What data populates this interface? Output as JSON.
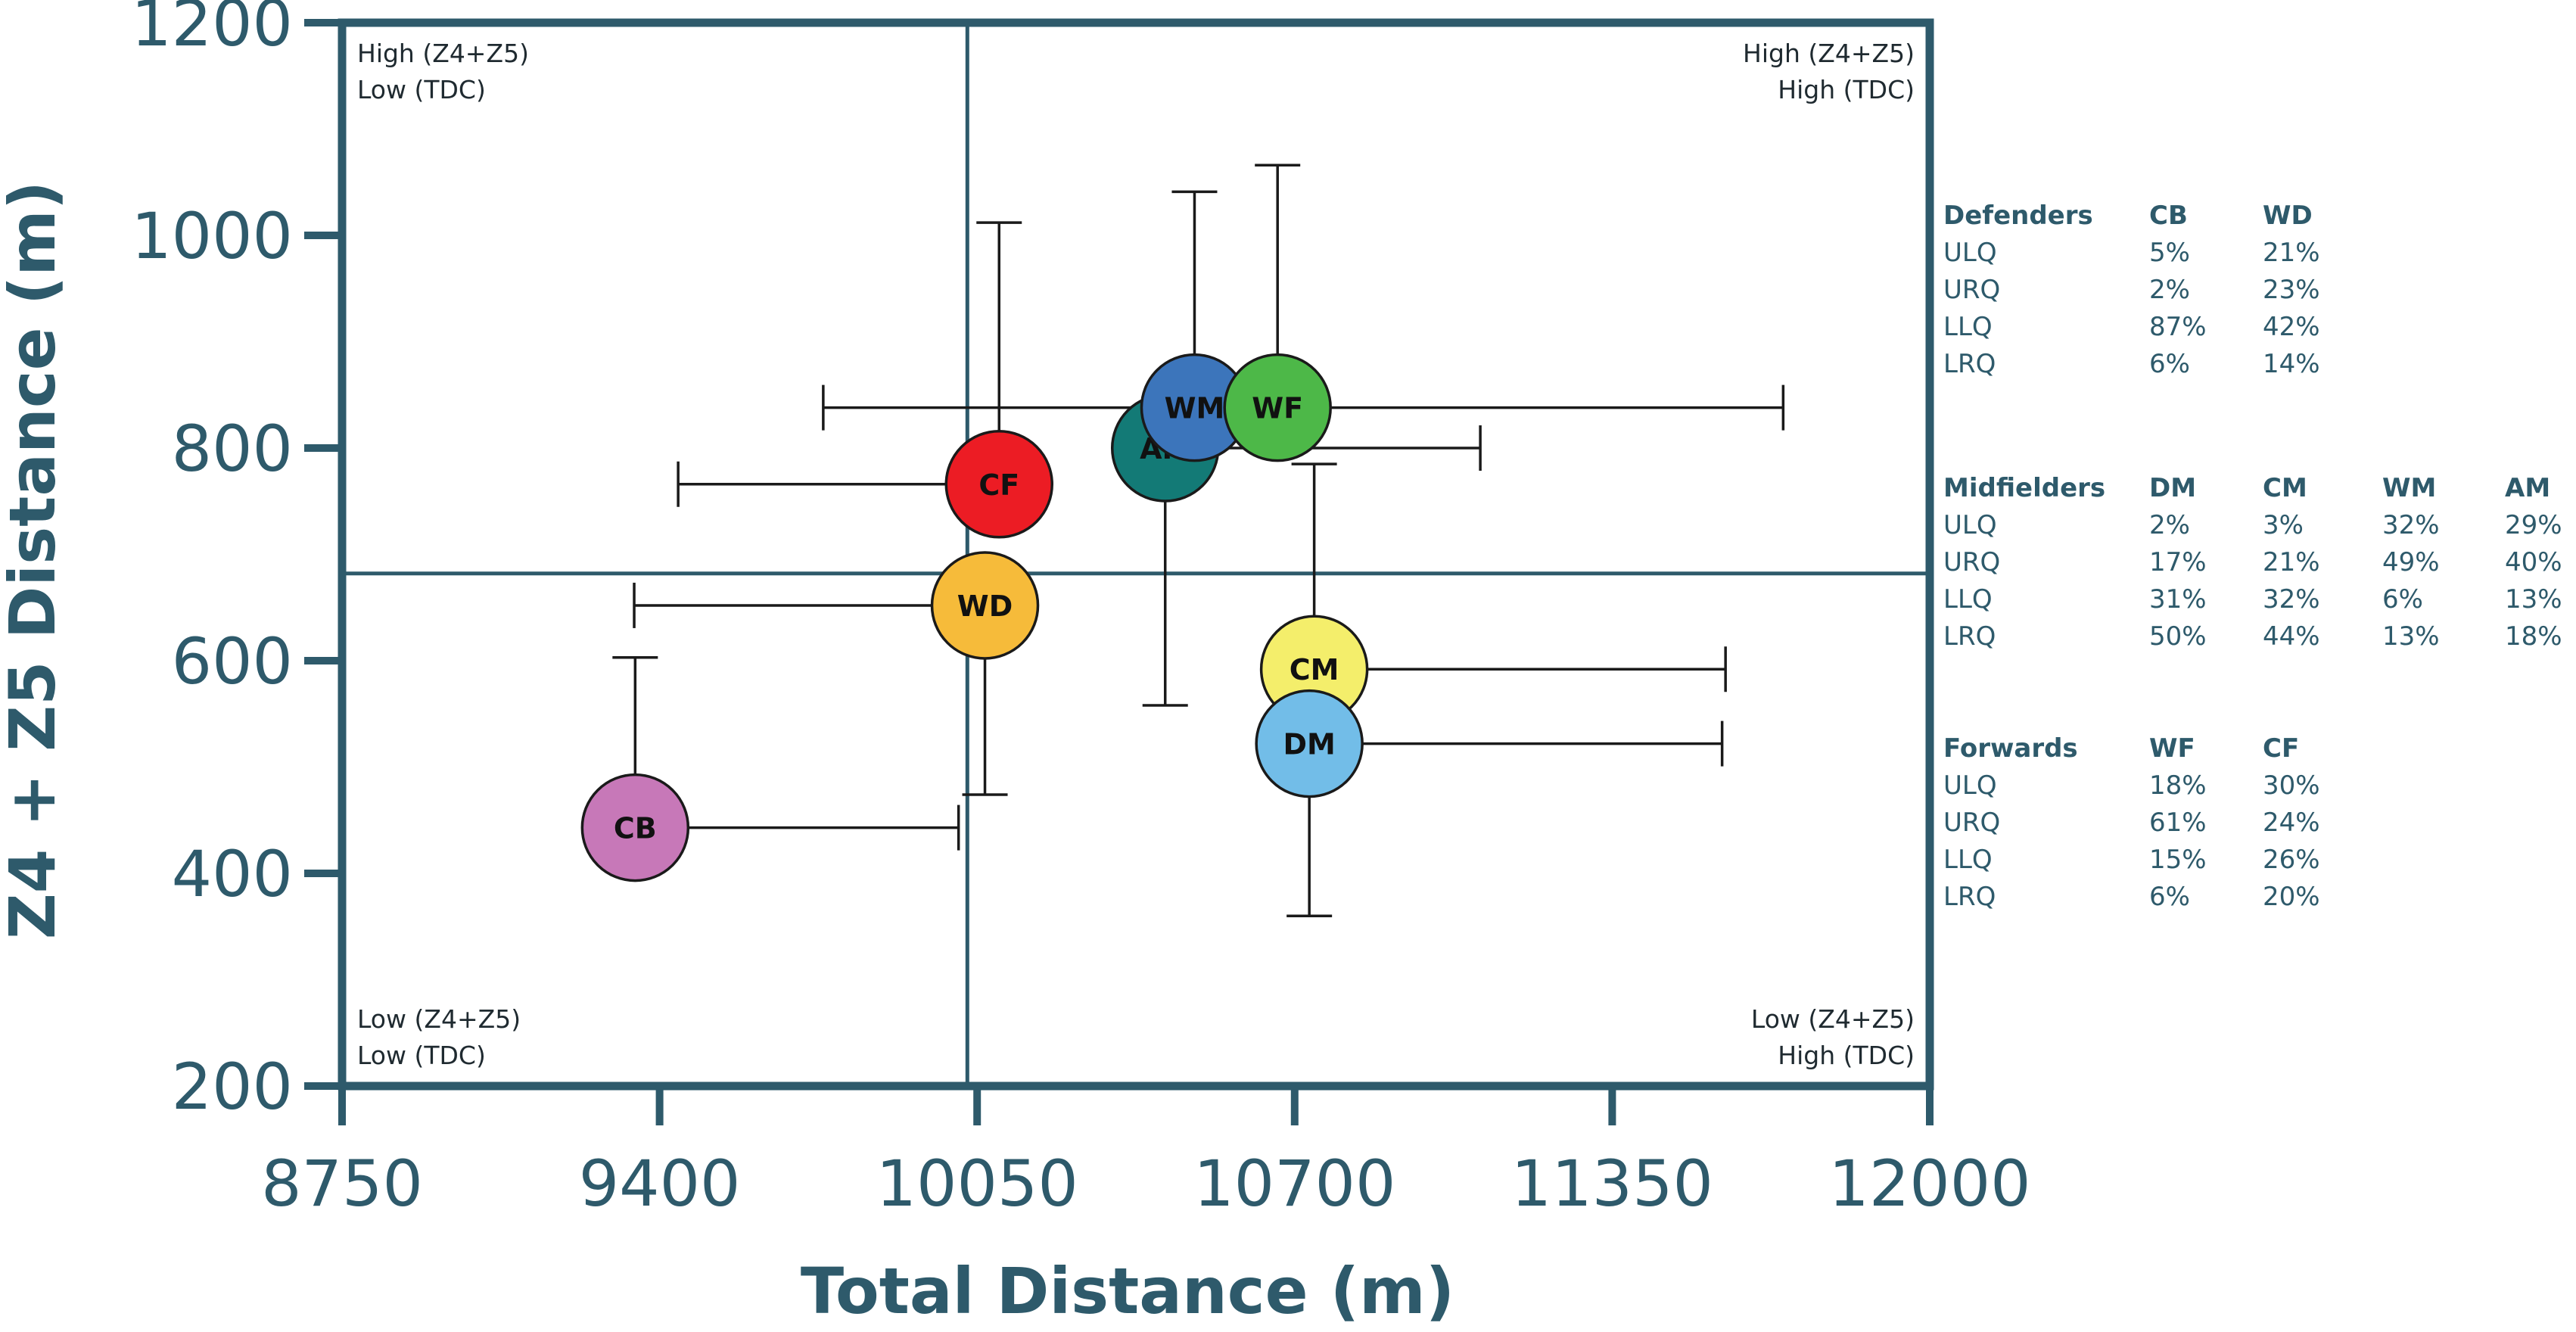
{
  "chart_data": {
    "type": "scatter",
    "xlabel": "Total Distance (m)",
    "ylabel": "Z4 + Z5 Distance (m)",
    "xlim": [
      8750,
      12000
    ],
    "ylim": [
      200,
      1200
    ],
    "xticks": [
      "8750",
      "9400",
      "10050",
      "10700",
      "11350",
      "12000"
    ],
    "yticks": [
      "200",
      "400",
      "600",
      "800",
      "1000",
      "1200"
    ],
    "grid": false,
    "quadrant_divider": {
      "x": 10030,
      "y": 682
    },
    "quadrant_labels": {
      "upper_left": [
        "High (Z4+Z5)",
        "Low (TDC)"
      ],
      "upper_right": [
        "High (Z4+Z5)",
        "High (TDC)"
      ],
      "lower_left": [
        "Low (Z4+Z5)",
        "Low (TDC)"
      ],
      "lower_right": [
        "Low (Z4+Z5)",
        "High (TDC)"
      ]
    },
    "points": [
      {
        "label": "CB",
        "x": 9350,
        "y": 443,
        "x_err_to": 10012,
        "y_err_to": 603,
        "color": "#c778b8"
      },
      {
        "label": "WD",
        "x": 10066,
        "y": 652,
        "x_err_to": 9348,
        "y_err_to": 474,
        "color": "#f6bb3a"
      },
      {
        "label": "CF",
        "x": 10095,
        "y": 766,
        "x_err_to": 9438,
        "y_err_to": 1012,
        "color": "#ec1c24"
      },
      {
        "label": "AM",
        "x": 10435,
        "y": 800,
        "x_err_to": 11080,
        "y_err_to": 558,
        "color": "#137a76"
      },
      {
        "label": "WM",
        "x": 10495,
        "y": 838,
        "x_err_to": 9735,
        "y_err_to": 1041,
        "color": "#3c75bb"
      },
      {
        "label": "WF",
        "x": 10665,
        "y": 838,
        "x_err_to": 11700,
        "y_err_to": 1066,
        "color": "#4db848"
      },
      {
        "label": "CM",
        "x": 10740,
        "y": 592,
        "x_err_to": 11582,
        "y_err_to": 785,
        "color": "#f4ee6b"
      },
      {
        "label": "DM",
        "x": 10730,
        "y": 522,
        "x_err_to": 11575,
        "y_err_to": 360,
        "color": "#72bde8"
      }
    ]
  },
  "tables": [
    {
      "header": [
        "Defenders",
        "CB",
        "WD"
      ],
      "rows": [
        [
          "ULQ",
          "5%",
          "21%"
        ],
        [
          "URQ",
          "2%",
          "23%"
        ],
        [
          "LLQ",
          "87%",
          "42%"
        ],
        [
          "LRQ",
          "6%",
          "14%"
        ]
      ]
    },
    {
      "header": [
        "Midfielders",
        "DM",
        "CM",
        "WM",
        "AM"
      ],
      "rows": [
        [
          "ULQ",
          "2%",
          "3%",
          "32%",
          "29%"
        ],
        [
          "URQ",
          "17%",
          "21%",
          "49%",
          "40%"
        ],
        [
          "LLQ",
          "31%",
          "32%",
          "6%",
          "13%"
        ],
        [
          "LRQ",
          "50%",
          "44%",
          "13%",
          "18%"
        ]
      ]
    },
    {
      "header": [
        "Forwards",
        "WF",
        "CF"
      ],
      "rows": [
        [
          "ULQ",
          "18%",
          "30%"
        ],
        [
          "URQ",
          "61%",
          "24%"
        ],
        [
          "LLQ",
          "15%",
          "26%"
        ],
        [
          "LRQ",
          "6%",
          "20%"
        ]
      ]
    }
  ],
  "colors": {
    "axis": "#2e5a6b",
    "frame": "#2e5a6b"
  }
}
